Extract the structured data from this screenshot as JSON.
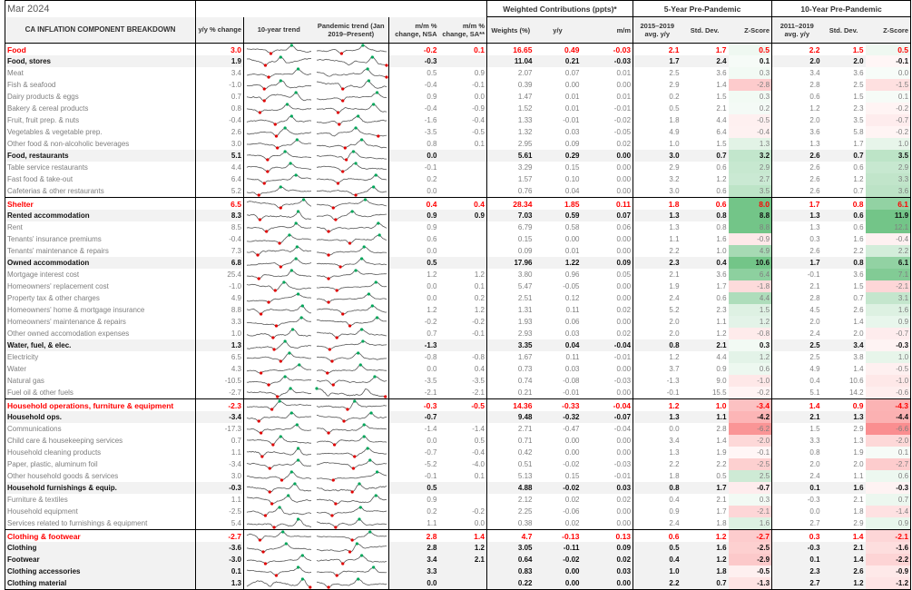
{
  "header": {
    "date": "Mar 2024",
    "title": "CA INFLATION COMPONENT BREAKDOWN",
    "groups": {
      "weighted": "Weighted Contributions (ppts)*",
      "five_year": "5-Year Pre-Pandemic",
      "ten_year": "10-Year Pre-Pandemic"
    },
    "columns": {
      "yy": "y/y % change",
      "trend10": "10-year trend",
      "trend_pandemic": "Pandemic trend (Jan 2019–Present)",
      "mm_nsa": "m/m % change, NSA",
      "mm_sa": "m/m % change, SA**",
      "weights": "Weights (%)",
      "contrib_yy": "y/y",
      "contrib_mm": "m/m",
      "avg5": "2015–2019 avg. y/y",
      "std5": "Std. Dev.",
      "z5": "Z-Score",
      "avg10": "2011–2019 avg. y/y",
      "std10": "Std. Dev.",
      "z10": "Z-Score"
    }
  },
  "colors": {
    "section": "#ff0000",
    "z_positive": "#63be7b",
    "z_negative": "#f8696b",
    "spark_max": "#00a65a",
    "spark_min": "#e00000"
  },
  "rows": [
    {
      "level": "sec",
      "label": "Food",
      "v": [
        "3.0",
        "-0.2",
        "0.1",
        "16.65",
        "0.49",
        "-0.03",
        "2.1",
        "1.7",
        "0.5",
        "2.2",
        "1.5",
        "0.5"
      ]
    },
    {
      "level": "sub",
      "label": "Food, stores",
      "v": [
        "1.9",
        "-0.3",
        "",
        "11.04",
        "0.21",
        "-0.03",
        "1.7",
        "2.4",
        "0.1",
        "2.0",
        "2.0",
        "-0.1"
      ]
    },
    {
      "level": "item",
      "label": "Meat",
      "v": [
        "3.4",
        "0.5",
        "0.9",
        "2.07",
        "0.07",
        "0.01",
        "2.5",
        "3.6",
        "0.3",
        "3.4",
        "3.6",
        "0.0"
      ]
    },
    {
      "level": "item",
      "label": "Fish & seafood",
      "v": [
        "-1.0",
        "-0.4",
        "-0.1",
        "0.39",
        "0.00",
        "0.00",
        "2.9",
        "1.4",
        "-2.8",
        "2.8",
        "2.5",
        "-1.5"
      ]
    },
    {
      "level": "item",
      "label": "Dairy products & eggs",
      "v": [
        "0.7",
        "0.9",
        "0.0",
        "1.47",
        "0.01",
        "0.01",
        "0.2",
        "1.5",
        "0.3",
        "0.6",
        "1.5",
        "0.1"
      ]
    },
    {
      "level": "item",
      "label": "Bakery & cereal products",
      "v": [
        "0.8",
        "-0.4",
        "-0.9",
        "1.52",
        "0.01",
        "-0.01",
        "0.5",
        "2.1",
        "0.2",
        "1.2",
        "2.3",
        "-0.2"
      ]
    },
    {
      "level": "item",
      "label": "Fruit, fruit prep. & nuts",
      "v": [
        "-0.4",
        "-1.6",
        "-0.4",
        "1.33",
        "-0.01",
        "-0.02",
        "1.8",
        "4.4",
        "-0.5",
        "2.0",
        "3.5",
        "-0.7"
      ]
    },
    {
      "level": "item",
      "label": "Vegetables & vegetable prep.",
      "v": [
        "2.6",
        "-3.5",
        "-0.5",
        "1.32",
        "0.03",
        "-0.05",
        "4.9",
        "6.4",
        "-0.4",
        "3.6",
        "5.8",
        "-0.2"
      ]
    },
    {
      "level": "item",
      "label": "Other food & non-alcoholic beverages",
      "v": [
        "3.0",
        "0.8",
        "0.1",
        "2.95",
        "0.09",
        "0.02",
        "1.0",
        "1.5",
        "1.3",
        "1.3",
        "1.7",
        "1.0"
      ]
    },
    {
      "level": "sub",
      "label": "Food, restaurants",
      "v": [
        "5.1",
        "0.0",
        "",
        "5.61",
        "0.29",
        "0.00",
        "3.0",
        "0.7",
        "3.2",
        "2.6",
        "0.7",
        "3.5"
      ]
    },
    {
      "level": "item",
      "label": "Table service restaurants",
      "v": [
        "4.4",
        "-0.1",
        "",
        "3.29",
        "0.15",
        "0.00",
        "2.9",
        "0.6",
        "2.9",
        "2.6",
        "0.6",
        "2.9"
      ]
    },
    {
      "level": "item",
      "label": "Fast food & take-out",
      "v": [
        "6.4",
        "0.2",
        "",
        "1.57",
        "0.10",
        "0.00",
        "3.2",
        "1.2",
        "2.7",
        "2.6",
        "1.2",
        "3.3"
      ]
    },
    {
      "level": "item",
      "label": "Cafeterias & other restaurants",
      "v": [
        "5.2",
        "0.0",
        "",
        "0.76",
        "0.04",
        "0.00",
        "3.0",
        "0.6",
        "3.5",
        "2.6",
        "0.7",
        "3.6"
      ]
    },
    {
      "level": "sec",
      "label": "Shelter",
      "v": [
        "6.5",
        "0.4",
        "0.4",
        "28.34",
        "1.85",
        "0.11",
        "1.8",
        "0.6",
        "8.0",
        "1.7",
        "0.8",
        "6.1"
      ]
    },
    {
      "level": "sub",
      "label": "Rented accommodation",
      "v": [
        "8.3",
        "0.9",
        "0.9",
        "7.03",
        "0.59",
        "0.07",
        "1.3",
        "0.8",
        "8.8",
        "1.3",
        "0.6",
        "11.9"
      ]
    },
    {
      "level": "item",
      "label": "Rent",
      "v": [
        "8.5",
        "0.9",
        "",
        "6.79",
        "0.58",
        "0.06",
        "1.3",
        "0.8",
        "8.8",
        "1.3",
        "0.6",
        "12.1"
      ]
    },
    {
      "level": "item",
      "label": "Tenants' insurance premiums",
      "v": [
        "-0.4",
        "0.6",
        "",
        "0.15",
        "0.00",
        "0.00",
        "1.1",
        "1.6",
        "-0.9",
        "0.3",
        "1.6",
        "-0.4"
      ]
    },
    {
      "level": "item",
      "label": "Tenants' maintenance & repairs",
      "v": [
        "7.3",
        "0.0",
        "",
        "0.09",
        "0.01",
        "0.00",
        "2.2",
        "1.0",
        "4.9",
        "2.6",
        "2.2",
        "2.2"
      ]
    },
    {
      "level": "sub",
      "label": "Owned accommodation",
      "v": [
        "6.8",
        "0.5",
        "",
        "17.96",
        "1.22",
        "0.09",
        "2.3",
        "0.4",
        "10.6",
        "1.7",
        "0.8",
        "6.1"
      ]
    },
    {
      "level": "item",
      "label": "Mortgage interest cost",
      "v": [
        "25.4",
        "1.2",
        "1.2",
        "3.80",
        "0.96",
        "0.05",
        "2.1",
        "3.6",
        "6.4",
        "-0.1",
        "3.6",
        "7.1"
      ]
    },
    {
      "level": "item",
      "label": "Homeowners' replacement cost",
      "v": [
        "-1.0",
        "0.0",
        "0.1",
        "5.47",
        "-0.05",
        "0.00",
        "1.9",
        "1.7",
        "-1.8",
        "2.1",
        "1.5",
        "-2.1"
      ]
    },
    {
      "level": "item",
      "label": "Property tax & other charges",
      "v": [
        "4.9",
        "0.0",
        "0.2",
        "2.51",
        "0.12",
        "0.00",
        "2.4",
        "0.6",
        "4.4",
        "2.8",
        "0.7",
        "3.1"
      ]
    },
    {
      "level": "item",
      "label": "Homeowners' home & mortgage insurance",
      "v": [
        "8.8",
        "1.2",
        "1.2",
        "1.31",
        "0.11",
        "0.02",
        "5.2",
        "2.3",
        "1.5",
        "4.5",
        "2.6",
        "1.6"
      ]
    },
    {
      "level": "item",
      "label": "Homeowners' maintenance & repairs",
      "v": [
        "3.3",
        "-0.2",
        "-0.2",
        "1.93",
        "0.06",
        "0.00",
        "2.0",
        "1.1",
        "1.2",
        "2.0",
        "1.4",
        "0.9"
      ]
    },
    {
      "level": "item",
      "label": "Other owned accomodation expenses",
      "v": [
        "1.0",
        "0.7",
        "-0.1",
        "2.93",
        "0.03",
        "0.02",
        "2.0",
        "1.2",
        "-0.8",
        "2.4",
        "2.0",
        "-0.7"
      ]
    },
    {
      "level": "sub",
      "label": "Water, fuel, & elec.",
      "v": [
        "1.3",
        "-1.3",
        "",
        "3.35",
        "0.04",
        "-0.04",
        "0.8",
        "2.1",
        "0.3",
        "2.5",
        "3.4",
        "-0.3"
      ]
    },
    {
      "level": "item",
      "label": "Electricity",
      "v": [
        "6.5",
        "-0.8",
        "-0.8",
        "1.67",
        "0.11",
        "-0.01",
        "1.2",
        "4.4",
        "1.2",
        "2.5",
        "3.8",
        "1.0"
      ]
    },
    {
      "level": "item",
      "label": "Water",
      "v": [
        "4.3",
        "0.0",
        "0.4",
        "0.73",
        "0.03",
        "0.00",
        "3.7",
        "0.9",
        "0.6",
        "4.9",
        "1.4",
        "-0.5"
      ]
    },
    {
      "level": "item",
      "label": "Natural gas",
      "v": [
        "-10.5",
        "-3.5",
        "-3.5",
        "0.74",
        "-0.08",
        "-0.03",
        "-1.3",
        "9.0",
        "-1.0",
        "0.4",
        "10.6",
        "-1.0"
      ]
    },
    {
      "level": "item",
      "label": "Fuel oil & other fuels",
      "v": [
        "-2.7",
        "-2.1",
        "-2.1",
        "0.21",
        "-0.01",
        "0.00",
        "-0.1",
        "15.5",
        "-0.2",
        "5.1",
        "14.2",
        "-0.6"
      ]
    },
    {
      "level": "sec",
      "label": "Household operations, furniture & equipment",
      "v": [
        "-2.3",
        "-0.3",
        "-0.5",
        "14.36",
        "-0.33",
        "-0.04",
        "1.2",
        "1.0",
        "-3.4",
        "1.4",
        "0.9",
        "-4.3"
      ]
    },
    {
      "level": "sub",
      "label": "Household ops.",
      "v": [
        "-3.4",
        "-0.7",
        "",
        "9.48",
        "-0.32",
        "-0.07",
        "1.3",
        "1.1",
        "-4.2",
        "2.1",
        "1.3",
        "-4.4"
      ]
    },
    {
      "level": "item",
      "label": "Communications",
      "v": [
        "-17.3",
        "-1.4",
        "-1.4",
        "2.71",
        "-0.47",
        "-0.04",
        "0.0",
        "2.8",
        "-6.2",
        "1.5",
        "2.9",
        "-6.6"
      ]
    },
    {
      "level": "item",
      "label": "Child care & housekeeping services",
      "v": [
        "0.7",
        "0.0",
        "0.5",
        "0.71",
        "0.00",
        "0.00",
        "3.4",
        "1.4",
        "-2.0",
        "3.3",
        "1.3",
        "-2.0"
      ]
    },
    {
      "level": "item",
      "label": "Household cleaning products",
      "v": [
        "1.1",
        "-0.7",
        "-0.4",
        "0.42",
        "0.00",
        "0.00",
        "1.3",
        "1.9",
        "-0.1",
        "0.8",
        "1.9",
        "0.1"
      ]
    },
    {
      "level": "item",
      "label": "Paper, plastic, aluminum foil",
      "v": [
        "-3.4",
        "-5.2",
        "-4.0",
        "0.51",
        "-0.02",
        "-0.03",
        "2.2",
        "2.2",
        "-2.5",
        "2.0",
        "2.0",
        "-2.7"
      ]
    },
    {
      "level": "item",
      "label": "Other household goods & services",
      "v": [
        "3.0",
        "-0.1",
        "0.1",
        "5.13",
        "0.15",
        "-0.01",
        "1.8",
        "0.5",
        "2.5",
        "2.4",
        "1.1",
        "0.6"
      ]
    },
    {
      "level": "sub",
      "label": "Household furnishings & equip.",
      "v": [
        "-0.3",
        "0.5",
        "",
        "4.88",
        "-0.02",
        "0.03",
        "0.8",
        "1.7",
        "-0.7",
        "0.1",
        "1.6",
        "-0.3"
      ]
    },
    {
      "level": "item",
      "label": "Furniture & textiles",
      "v": [
        "1.1",
        "0.9",
        "",
        "2.12",
        "0.02",
        "0.02",
        "0.4",
        "2.1",
        "0.3",
        "-0.3",
        "2.1",
        "0.7"
      ]
    },
    {
      "level": "item",
      "label": "Household equipment",
      "v": [
        "-2.5",
        "0.2",
        "-0.2",
        "2.25",
        "-0.06",
        "0.00",
        "0.9",
        "1.7",
        "-2.1",
        "0.0",
        "1.8",
        "-1.4"
      ]
    },
    {
      "level": "item",
      "label": "Services related to furnishings & equipment",
      "v": [
        "5.4",
        "1.1",
        "0.0",
        "0.38",
        "0.02",
        "0.00",
        "2.4",
        "1.8",
        "1.6",
        "2.7",
        "2.9",
        "0.9"
      ]
    },
    {
      "level": "sec",
      "label": "Clothing & footwear",
      "v": [
        "-2.7",
        "2.8",
        "1.4",
        "4.7",
        "-0.13",
        "0.13",
        "0.6",
        "1.2",
        "-2.7",
        "0.3",
        "1.4",
        "-2.1"
      ]
    },
    {
      "level": "sub",
      "label": "Clothing",
      "v": [
        "-3.6",
        "2.8",
        "1.2",
        "3.05",
        "-0.11",
        "0.09",
        "0.5",
        "1.6",
        "-2.5",
        "-0.3",
        "2.1",
        "-1.6"
      ]
    },
    {
      "level": "sub",
      "label": "Footwear",
      "v": [
        "-3.0",
        "3.4",
        "2.1",
        "0.64",
        "-0.02",
        "0.02",
        "0.4",
        "1.2",
        "-2.9",
        "0.1",
        "1.4",
        "-2.2"
      ]
    },
    {
      "level": "sub",
      "label": "Clothing accessories",
      "v": [
        "0.1",
        "3.3",
        "",
        "0.83",
        "0.00",
        "0.03",
        "1.0",
        "1.8",
        "-0.5",
        "2.3",
        "2.6",
        "-0.9"
      ]
    },
    {
      "level": "sub",
      "label": "Clothing material",
      "v": [
        "1.3",
        "0.0",
        "",
        "0.22",
        "0.00",
        "0.00",
        "2.2",
        "0.7",
        "-1.3",
        "2.7",
        "1.2",
        "-1.2"
      ]
    }
  ]
}
